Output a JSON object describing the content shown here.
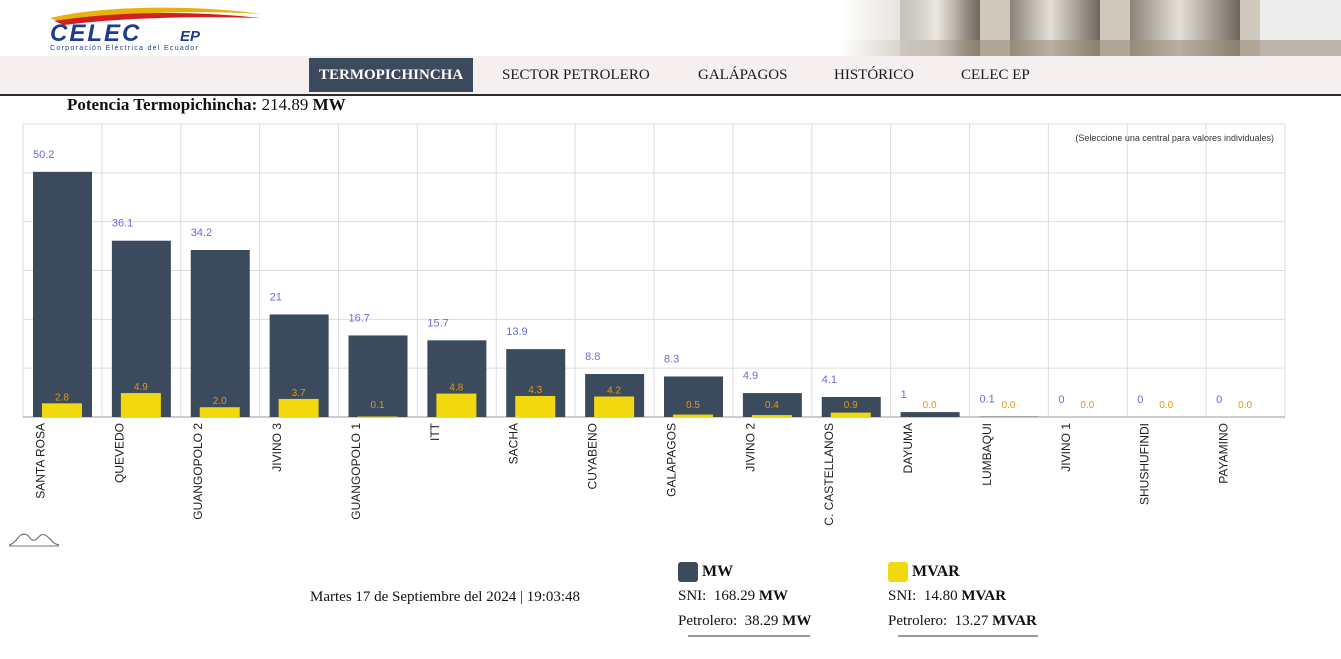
{
  "header": {
    "logo_text": "CELEC EP",
    "logo_subtitle": "Corporación Eléctrica del Ecuador"
  },
  "nav": {
    "items": [
      {
        "label": "TERMOPICHINCHA",
        "active": true
      },
      {
        "label": "SECTOR PETROLERO",
        "active": false
      },
      {
        "label": "GALÁPAGOS",
        "active": false
      },
      {
        "label": "HISTÓRICO",
        "active": false
      },
      {
        "label": "CELEC EP",
        "active": false
      }
    ]
  },
  "power": {
    "label": "Potencia Termopichincha:",
    "value": "214.89",
    "unit": "MW"
  },
  "chart_data": {
    "type": "bar",
    "annotation": "(Seleccione una central para valores individuales)",
    "categories": [
      "SANTA ROSA",
      "QUEVEDO",
      "GUANGOPOLO 2",
      "JIVINO 3",
      "GUANGOPOLO 1",
      "ITT",
      "SACHA",
      "CUYABENO",
      "GALAPAGOS",
      "JIVINO 2",
      "C. CASTELLANOS",
      "DAYUMA",
      "LUMBAQUI",
      "JIVINO 1",
      "SHUSHUFINDI",
      "PAYAMINO"
    ],
    "series": [
      {
        "name": "MW",
        "color": "#3c4a5e",
        "label_color": "#6a6ae0",
        "values": [
          50.2,
          36.1,
          34.2,
          21,
          16.7,
          15.7,
          13.9,
          8.8,
          8.3,
          4.9,
          4.1,
          1,
          0.1,
          0,
          0,
          0
        ],
        "labels": [
          "50.2",
          "36.1",
          "34.2",
          "21",
          "16.7",
          "15.7",
          "13.9",
          "8.8",
          "8.3",
          "4.9",
          "4.1",
          "1",
          "0.1",
          "0",
          "0",
          "0"
        ]
      },
      {
        "name": "MVAR",
        "color": "#f2d80f",
        "label_color": "#e8960a",
        "values": [
          2.8,
          4.9,
          2.0,
          3.7,
          0.1,
          4.8,
          4.3,
          4.2,
          0.5,
          0.4,
          0.9,
          0.0,
          0.0,
          0.0,
          0.0,
          0.0
        ],
        "labels": [
          "2.8",
          "4.9",
          "2.0",
          "3.7",
          "0.1",
          "4.8",
          "4.3",
          "4.2",
          "0.5",
          "0.4",
          "0.9",
          "0.0",
          "0.0",
          "0.0",
          "0.0",
          "0.0"
        ]
      }
    ],
    "ylim": [
      0,
      60
    ],
    "grid": true
  },
  "footer": {
    "datetime": "Martes 17 de Septiembre del 2024 | 19:03:48"
  },
  "legend": {
    "mw": {
      "title": "MW",
      "color": "#3c4a5e",
      "sni_label": "SNI:",
      "sni_value": "168.29",
      "sni_unit": "MW",
      "pet_label": "Petrolero:",
      "pet_value": "38.29",
      "pet_unit": "MW"
    },
    "mvar": {
      "title": "MVAR",
      "color": "#f2d80f",
      "sni_label": "SNI:",
      "sni_value": "14.80",
      "sni_unit": "MVAR",
      "pet_label": "Petrolero:",
      "pet_value": "13.27",
      "pet_unit": "MVAR"
    }
  }
}
